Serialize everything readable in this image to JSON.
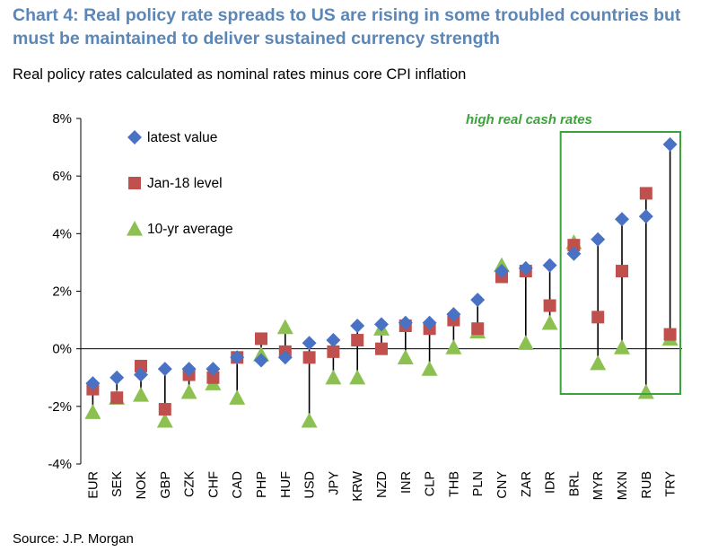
{
  "title": "Chart 4: Real policy rate spreads to US are rising in some troubled countries but must be maintained to deliver sustained currency strength",
  "subtitle": "Real policy rates calculated as nominal rates minus core CPI inflation",
  "source": "Source: J.P. Morgan",
  "colors": {
    "title": "#5b86b8",
    "latest": "#4a72c4",
    "jan18": "#c0504d",
    "avg10": "#8cc152",
    "highlight_box": "#3aa43a"
  },
  "chart_data": {
    "type": "scatter",
    "categories": [
      "EUR",
      "SEK",
      "NOK",
      "GBP",
      "CZK",
      "CHF",
      "CAD",
      "PHP",
      "HUF",
      "USD",
      "JPY",
      "KRW",
      "NZD",
      "INR",
      "CLP",
      "THB",
      "PLN",
      "CNY",
      "ZAR",
      "IDR",
      "BRL",
      "MYR",
      "MXN",
      "RUB",
      "TRY"
    ],
    "series": [
      {
        "name": "latest value",
        "marker": "diamond",
        "values": [
          -1.2,
          -1.0,
          -0.9,
          -0.7,
          -0.7,
          -0.7,
          -0.3,
          -0.4,
          -0.3,
          0.2,
          0.3,
          0.8,
          0.85,
          0.9,
          0.9,
          1.2,
          1.7,
          2.7,
          2.8,
          2.9,
          3.3,
          3.8,
          4.5,
          4.6,
          7.1
        ]
      },
      {
        "name": "Jan-18 level",
        "marker": "square",
        "values": [
          -1.4,
          -1.7,
          -0.6,
          -2.1,
          -0.9,
          -1.0,
          -0.3,
          0.35,
          -0.1,
          -0.3,
          -0.1,
          0.3,
          0.0,
          0.8,
          0.7,
          1.0,
          0.7,
          2.5,
          2.7,
          1.5,
          3.6,
          1.1,
          2.7,
          5.4,
          0.5
        ]
      },
      {
        "name": "10-yr average",
        "marker": "triangle",
        "values": [
          -2.2,
          -1.7,
          -1.6,
          -2.5,
          -1.5,
          -1.2,
          -1.7,
          -0.2,
          0.75,
          -2.5,
          -1.0,
          -1.0,
          0.7,
          -0.3,
          -0.7,
          0.05,
          0.6,
          2.9,
          0.2,
          0.9,
          3.7,
          -0.5,
          0.05,
          -1.5,
          0.35
        ]
      }
    ],
    "ylim": [
      -4,
      8
    ],
    "yticks": [
      "8%",
      "6%",
      "4%",
      "2%",
      "0%",
      "-2%",
      "-4%"
    ],
    "ytick_values": [
      8,
      6,
      4,
      2,
      0,
      -2,
      -4
    ],
    "legend_position": "top-left",
    "annotation": "high real  cash rates",
    "highlight_categories": [
      "BRL",
      "MYR",
      "MXN",
      "RUB",
      "TRY"
    ]
  }
}
